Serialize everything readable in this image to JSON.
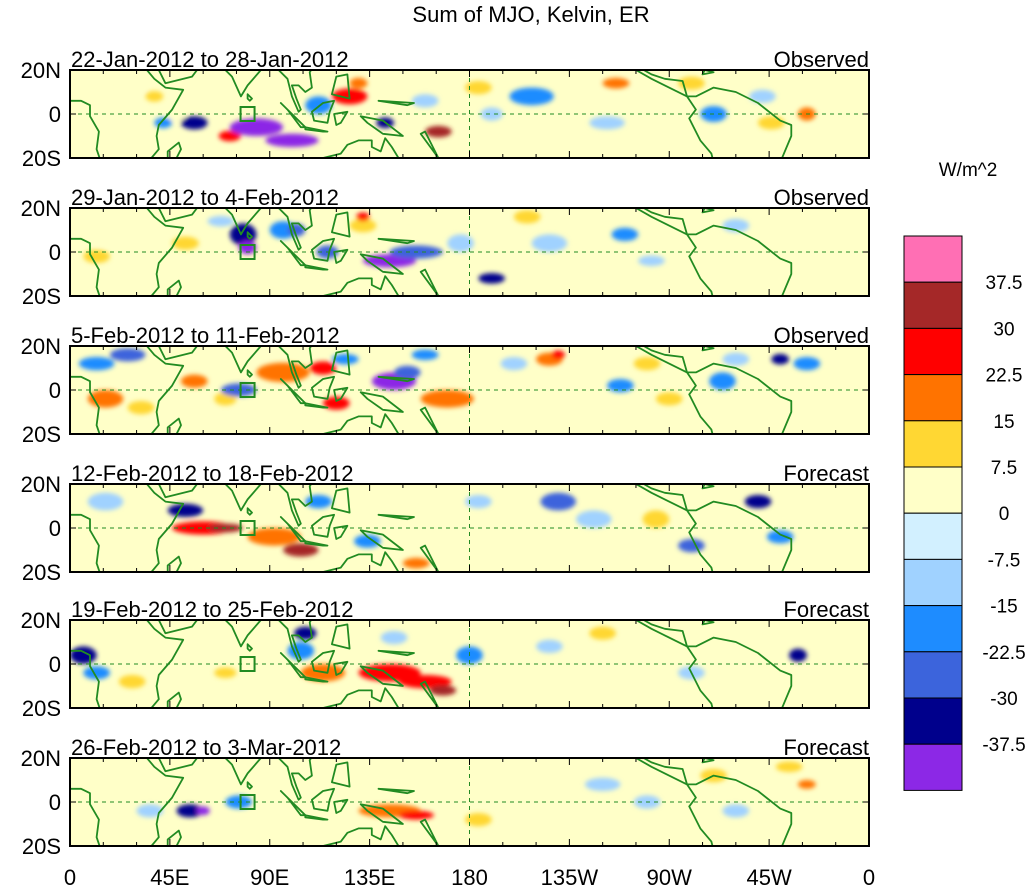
{
  "title": "Sum of MJO, Kelvin, ER",
  "units": "W/m^2",
  "lat_labels": [
    "20N",
    "0",
    "20S"
  ],
  "lon_labels": [
    "0",
    "45E",
    "90E",
    "135E",
    "180",
    "135W",
    "90W",
    "45W",
    "0"
  ],
  "panels": [
    {
      "dates": "22-Jan-2012 to 28-Jan-2012",
      "kind": "Observed"
    },
    {
      "dates": "29-Jan-2012 to 4-Feb-2012",
      "kind": "Observed"
    },
    {
      "dates": "5-Feb-2012 to 11-Feb-2012",
      "kind": "Observed"
    },
    {
      "dates": "12-Feb-2012 to 18-Feb-2012",
      "kind": "Forecast"
    },
    {
      "dates": "19-Feb-2012 to 25-Feb-2012",
      "kind": "Forecast"
    },
    {
      "dates": "26-Feb-2012 to 3-Mar-2012",
      "kind": "Forecast"
    }
  ],
  "colorbar": {
    "labels": [
      "37.5",
      "30",
      "22.5",
      "15",
      "7.5",
      "0",
      "-7.5",
      "-15",
      "-22.5",
      "-30",
      "-37.5"
    ],
    "colors": [
      "#ff6fb4",
      "#a52828",
      "#ff0000",
      "#ff7300",
      "#ffd733",
      "#ffffc8",
      "#d2f0ff",
      "#a0d2ff",
      "#1e8cff",
      "#3c64dc",
      "#00008c",
      "#8c28e6"
    ]
  },
  "land_color": "#228b22",
  "blobs": [
    [
      [
        7,
        4,
        1.6,
        1.5,
        7.5
      ],
      [
        14,
        4,
        3,
        1.5,
        7.5
      ],
      [
        19,
        6,
        2,
        1.2,
        15
      ],
      [
        24,
        10,
        2,
        1.5,
        7.5
      ],
      [
        21,
        12,
        2,
        1.2,
        -15
      ],
      [
        28,
        12,
        3,
        1.5,
        -30
      ],
      [
        36,
        15,
        2.5,
        1.2,
        30
      ],
      [
        42,
        13,
        6,
        2,
        -37.5
      ],
      [
        50,
        16,
        6,
        1.5,
        -37.5
      ],
      [
        56,
        8,
        3,
        2,
        -15
      ],
      [
        63,
        6,
        4,
        1.8,
        30
      ],
      [
        65,
        3,
        2,
        1.2,
        22.5
      ],
      [
        71,
        12,
        2,
        1.2,
        -30
      ],
      [
        83,
        14,
        3,
        1.3,
        37.5
      ],
      [
        80,
        7,
        3,
        1.5,
        -7.5
      ],
      [
        92,
        4,
        3,
        1.5,
        15
      ],
      [
        95,
        10,
        2.5,
        1.5,
        -7.5
      ],
      [
        104,
        6,
        5,
        2,
        -15
      ],
      [
        112,
        10,
        3,
        1.5,
        7.5
      ],
      [
        123,
        3,
        3,
        1.2,
        22.5
      ],
      [
        121,
        12,
        4,
        1.5,
        -7.5
      ],
      [
        140,
        3,
        3,
        1.5,
        15
      ],
      [
        145,
        10,
        3,
        1.8,
        -15
      ],
      [
        156,
        6,
        3,
        1.5,
        -7.5
      ],
      [
        158,
        12,
        3,
        1.5,
        15
      ],
      [
        166,
        10,
        2,
        1.5,
        22.5
      ]
    ],
    [
      [
        8,
        6,
        4,
        2.5,
        7.5
      ],
      [
        6,
        11,
        3,
        1.5,
        15
      ],
      [
        26,
        8,
        3,
        1.5,
        15
      ],
      [
        34,
        3,
        3,
        1.2,
        -7.5
      ],
      [
        39,
        6,
        3,
        2.5,
        -30
      ],
      [
        40,
        9,
        2,
        1.5,
        -37.5
      ],
      [
        48,
        5,
        3,
        2,
        -15
      ],
      [
        51,
        5,
        2,
        1.5,
        -22.5
      ],
      [
        58,
        10,
        2.5,
        1.5,
        -22.5
      ],
      [
        66,
        4,
        3,
        1.5,
        15
      ],
      [
        66,
        2,
        1.5,
        1,
        30
      ],
      [
        72,
        12,
        6,
        1.5,
        -37.5
      ],
      [
        78,
        10,
        6,
        1.5,
        -22.5
      ],
      [
        88,
        8,
        3,
        2,
        -7.5
      ],
      [
        95,
        16,
        3,
        1.2,
        -30
      ],
      [
        103,
        2,
        3,
        1.5,
        15
      ],
      [
        108,
        8,
        4,
        2,
        -7.5
      ],
      [
        125,
        6,
        3,
        1.5,
        -15
      ],
      [
        131,
        12,
        3,
        1.2,
        -7.5
      ],
      [
        148,
        8,
        2,
        1.2,
        7.5
      ],
      [
        150,
        4,
        3,
        1.5,
        -7.5
      ]
    ],
    [
      [
        6,
        4,
        4,
        1.5,
        -15
      ],
      [
        13,
        2,
        4,
        1.5,
        -22.5
      ],
      [
        8,
        12,
        4,
        2,
        22.5
      ],
      [
        16,
        14,
        3,
        1.5,
        15
      ],
      [
        28,
        8,
        3,
        1.5,
        22.5
      ],
      [
        35,
        12,
        2.5,
        1.5,
        15
      ],
      [
        38,
        10,
        4,
        1.5,
        -22.5
      ],
      [
        48,
        6,
        6,
        2.2,
        22.5
      ],
      [
        57,
        5,
        3,
        1.5,
        30
      ],
      [
        60,
        13,
        3,
        1.5,
        30
      ],
      [
        62,
        3,
        3,
        1.2,
        -15
      ],
      [
        73,
        8,
        5,
        2,
        -37.5
      ],
      [
        76,
        6,
        3,
        1.5,
        -22.5
      ],
      [
        80,
        2,
        3,
        1.2,
        -15
      ],
      [
        85,
        12,
        6,
        2,
        22.5
      ],
      [
        100,
        4,
        3,
        1.5,
        -7.5
      ],
      [
        108,
        3,
        3,
        1.5,
        22.5
      ],
      [
        110,
        2,
        1.5,
        1,
        30
      ],
      [
        104,
        10,
        6,
        1.8,
        7.5
      ],
      [
        124,
        9,
        3,
        1.5,
        -15
      ],
      [
        130,
        4,
        3,
        1.5,
        15
      ],
      [
        135,
        12,
        3,
        1.5,
        15
      ],
      [
        147,
        8,
        3,
        2,
        -15
      ],
      [
        150,
        3,
        3,
        1.5,
        -7.5
      ],
      [
        160,
        3,
        2,
        1.2,
        -30
      ],
      [
        166,
        4,
        3,
        1.5,
        -15
      ]
    ],
    [
      [
        8,
        4,
        4,
        2,
        -7.5
      ],
      [
        10,
        11,
        3,
        1.5,
        7.5
      ],
      [
        26,
        6,
        4,
        1.5,
        -30
      ],
      [
        30,
        10,
        7,
        1.5,
        30
      ],
      [
        35,
        10,
        4,
        1,
        37.5
      ],
      [
        46,
        12,
        6,
        2,
        22.5
      ],
      [
        52,
        15,
        4,
        1.5,
        37.5
      ],
      [
        56,
        4,
        3,
        1.5,
        -15
      ],
      [
        67,
        13,
        3,
        1.5,
        -15
      ],
      [
        78,
        18,
        3,
        1.2,
        22.5
      ],
      [
        92,
        4,
        3,
        1.5,
        -7.5
      ],
      [
        110,
        4,
        4,
        2,
        -22.5
      ],
      [
        118,
        8,
        4,
        2,
        -7.5
      ],
      [
        126,
        4,
        3,
        1.5,
        7.5
      ],
      [
        132,
        8,
        3,
        2,
        15
      ],
      [
        140,
        14,
        3,
        1.5,
        -22.5
      ],
      [
        155,
        4,
        3,
        1.5,
        -30
      ],
      [
        160,
        12,
        3,
        1.5,
        -15
      ]
    ],
    [
      [
        3,
        8,
        3,
        2,
        -30
      ],
      [
        6,
        12,
        3,
        1.5,
        -15
      ],
      [
        14,
        14,
        3,
        1.5,
        15
      ],
      [
        23,
        6,
        3,
        2,
        7.5
      ],
      [
        35,
        12,
        2.5,
        1.2,
        15
      ],
      [
        53,
        3,
        2.5,
        1.5,
        -30
      ],
      [
        52,
        7,
        3,
        2,
        -15
      ],
      [
        57,
        12,
        5,
        2,
        22.5
      ],
      [
        72,
        12,
        7,
        2,
        30
      ],
      [
        80,
        14,
        6,
        1.5,
        30
      ],
      [
        84,
        16,
        3,
        1.2,
        37.5
      ],
      [
        73,
        4,
        3,
        1.5,
        -7.5
      ],
      [
        90,
        8,
        3,
        2,
        -15
      ],
      [
        108,
        6,
        3,
        1.5,
        -7.5
      ],
      [
        120,
        3,
        3,
        1.5,
        15
      ],
      [
        128,
        8,
        3,
        1.5,
        7.5
      ],
      [
        140,
        12,
        3,
        1.5,
        -7.5
      ],
      [
        156,
        6,
        3,
        1.5,
        7.5
      ],
      [
        164,
        8,
        2,
        1.5,
        -30
      ]
    ],
    [
      [
        18,
        12,
        3,
        1.5,
        -7.5
      ],
      [
        27,
        12,
        3,
        1.5,
        -30
      ],
      [
        30,
        12,
        1.5,
        1,
        -37.5
      ],
      [
        38,
        10,
        3,
        1.5,
        -15
      ],
      [
        52,
        10,
        3,
        1.5,
        7.5
      ],
      [
        72,
        12,
        7,
        1.5,
        22.5
      ],
      [
        78,
        13,
        4,
        1,
        30
      ],
      [
        80,
        4,
        3,
        1.5,
        7.5
      ],
      [
        92,
        14,
        3,
        1.5,
        15
      ],
      [
        104,
        6,
        3,
        1.5,
        7.5
      ],
      [
        120,
        6,
        4,
        1.5,
        -7.5
      ],
      [
        130,
        10,
        3,
        1.5,
        -7.5
      ],
      [
        145,
        4,
        3,
        1.5,
        15
      ],
      [
        150,
        12,
        3,
        1.5,
        -7.5
      ],
      [
        162,
        2,
        3,
        1.2,
        15
      ],
      [
        166,
        6,
        2,
        1,
        22.5
      ]
    ]
  ]
}
